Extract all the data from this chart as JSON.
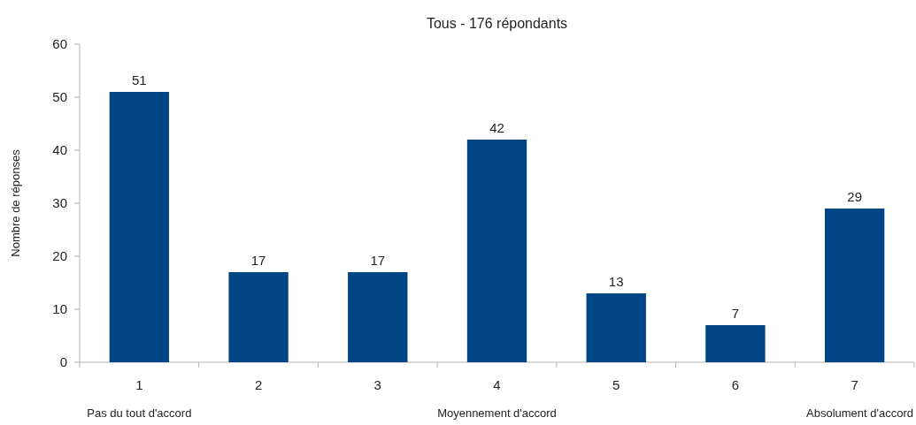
{
  "chart_data": {
    "type": "bar",
    "title": "Tous - 176 répondants",
    "ylabel": "Nombre de réponses",
    "categories": [
      "1",
      "2",
      "3",
      "4",
      "5",
      "6",
      "7"
    ],
    "values": [
      51,
      17,
      17,
      42,
      13,
      7,
      29
    ],
    "color": "#004586",
    "ylim": [
      0,
      60
    ],
    "yticks": [
      0,
      10,
      20,
      30,
      40,
      50,
      60
    ],
    "data_labels": true,
    "grid": false,
    "annotations": [
      "Pas du tout d'accord",
      "Moyennement d'accord",
      "Absolument d'accord"
    ]
  }
}
